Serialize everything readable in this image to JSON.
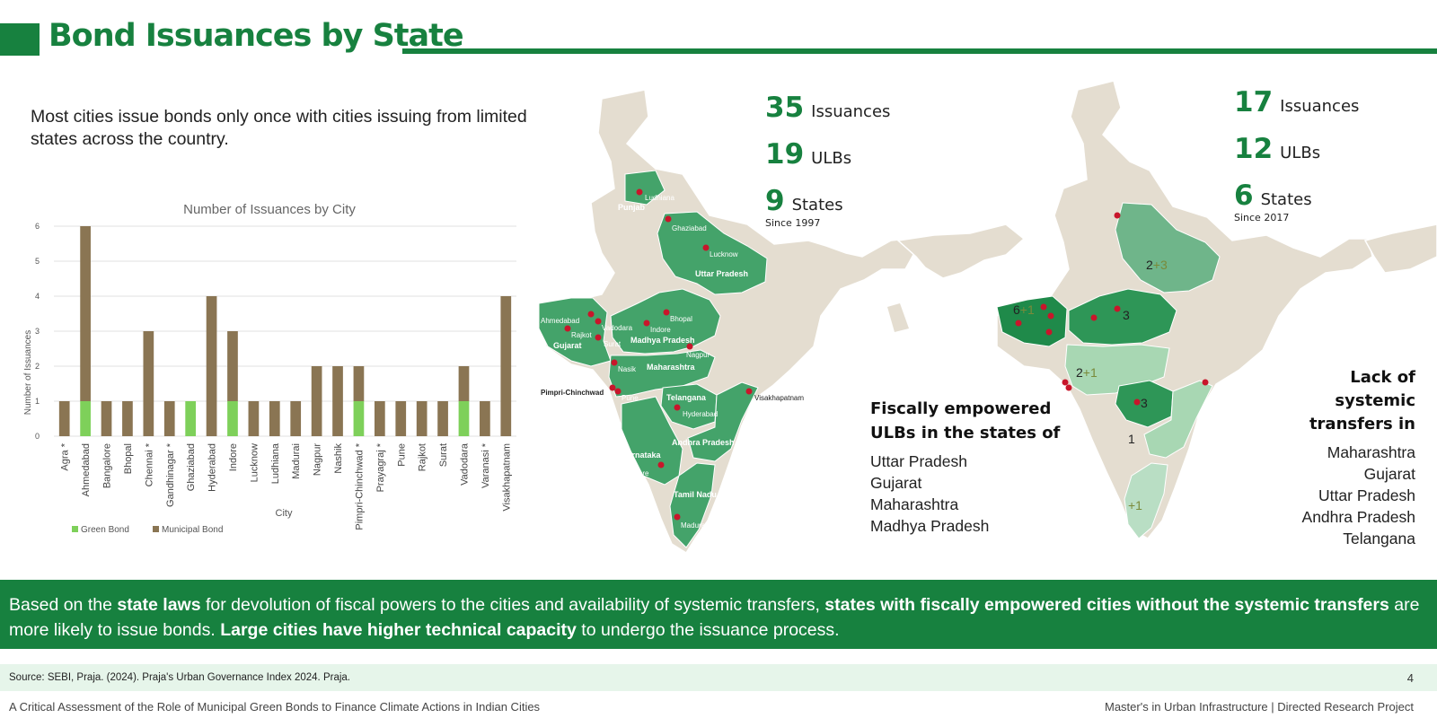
{
  "page": {
    "title": "Bond Issuances by State",
    "intro": "Most cities issue bonds only once with cities issuing from limited states across the country.",
    "page_number": "4",
    "source": "Source: SEBI, Praja. (2024). Praja's Urban Governance Index 2024. Praja.",
    "footer_left": "A Critical Assessment of the Role of Municipal Green Bonds to Finance Climate Actions in Indian Cities",
    "footer_right": "Master's in Urban Infrastructure | Directed Research Project"
  },
  "colors": {
    "accent": "#17813f",
    "green_bond": "#7ed05a",
    "municipal_bond": "#8a7553",
    "map_land": "#e4ddd0"
  },
  "map1": {
    "stats": [
      {
        "number": "35",
        "label": "Issuances"
      },
      {
        "number": "19",
        "label": "ULBs"
      },
      {
        "number": "9",
        "label": "States"
      }
    ],
    "since": "Since 1997",
    "state_labels": [
      "Punjab",
      "Uttar Pradesh",
      "Gujarat",
      "Madhya Pradesh",
      "Maharashtra",
      "Telangana",
      "Karnataka",
      "Andhra Pradesh",
      "Tamil Nadu"
    ],
    "city_labels": [
      "Ludhiana",
      "Ghaziabad",
      "Lucknow",
      "Ahmedabad",
      "Bhopal",
      "Vadodara",
      "Indore",
      "Rajkot",
      "Surat",
      "Nagpur",
      "Nasik",
      "Pimpri-Chinchwad",
      "Pune",
      "Visakhapatnam",
      "Hyderabad",
      "Bangalore",
      "Madurai"
    ]
  },
  "map2": {
    "stats": [
      {
        "number": "17",
        "label": "Issuances"
      },
      {
        "number": "12",
        "label": "ULBs"
      },
      {
        "number": "6",
        "label": "States"
      }
    ],
    "since": "Since 2017",
    "counts": [
      {
        "base": "2",
        "extra": "+3"
      },
      {
        "base": "6",
        "extra": "+1"
      },
      {
        "base": "3",
        "extra": ""
      },
      {
        "base": "2",
        "extra": "+1"
      },
      {
        "base": "3",
        "extra": ""
      },
      {
        "base": "1",
        "extra": ""
      },
      {
        "base": "",
        "extra": "+1"
      }
    ]
  },
  "fiscally_empowered": {
    "heading": [
      "Fiscally empowered",
      "ULBs in the states of"
    ],
    "states": [
      "Uttar Pradesh",
      "Gujarat",
      "Maharashtra",
      "Madhya Pradesh"
    ]
  },
  "lack_systemic": {
    "heading": [
      "Lack of",
      "systemic",
      "transfers in"
    ],
    "states": [
      "Maharashtra",
      "Gujarat",
      "Uttar Pradesh",
      "Andhra Pradesh",
      "Telangana"
    ]
  },
  "banner": {
    "p1": "Based on the ",
    "b1": "state laws",
    "p2": " for devolution of fiscal powers to the cities and availability of systemic transfers, ",
    "b2": "states with fiscally empowered cities without the systemic transfers",
    "p3": " are more likely to issue bonds. ",
    "b3": "Large cities have higher technical capacity",
    "p4": " to undergo the issuance process."
  },
  "chart_data": {
    "type": "bar",
    "stacked": true,
    "title": "Number of Issuances by City",
    "xlabel": "City",
    "ylabel": "Number of Issuances",
    "ylim": [
      0,
      6
    ],
    "yticks": [
      0,
      1,
      2,
      3,
      4,
      5,
      6
    ],
    "grid": true,
    "legend": "bottom-left",
    "categories": [
      "Agra *",
      "Ahmedabad",
      "Bangalore",
      "Bhopal",
      "Chennai *",
      "Gandhinagar *",
      "Ghaziabad",
      "Hyderabad",
      "Indore",
      "Lucknow",
      "Ludhiana",
      "Madurai",
      "Nagpur",
      "Nashik",
      "Pimpri-Chinchwad *",
      "Prayagraj *",
      "Pune",
      "Rajkot",
      "Surat",
      "Vadodara",
      "Varanasi *",
      "Visakhapatnam"
    ],
    "series": [
      {
        "name": "Green Bond",
        "color": "#7ed05a",
        "values": [
          0,
          1,
          0,
          0,
          0,
          0,
          1,
          0,
          1,
          0,
          0,
          0,
          0,
          0,
          1,
          0,
          0,
          0,
          0,
          1,
          0,
          0
        ]
      },
      {
        "name": "Municipal Bond",
        "color": "#8a7553",
        "values": [
          1,
          5,
          1,
          1,
          3,
          1,
          0,
          4,
          2,
          1,
          1,
          1,
          2,
          2,
          1,
          1,
          1,
          1,
          1,
          1,
          1,
          4
        ]
      }
    ]
  }
}
